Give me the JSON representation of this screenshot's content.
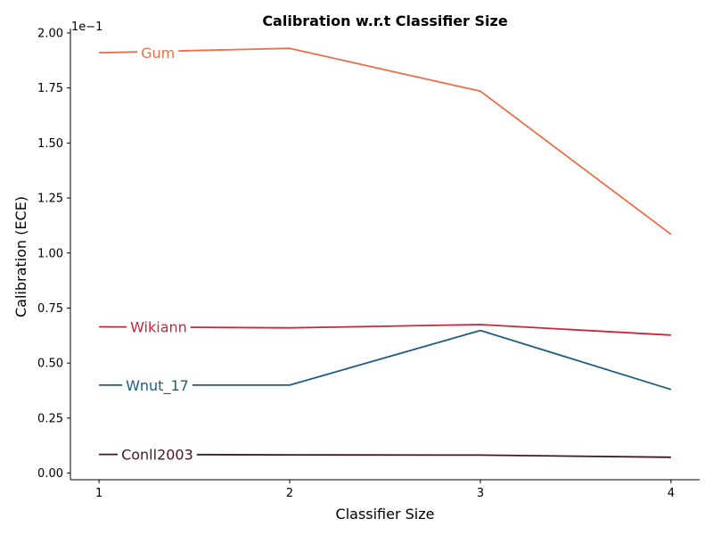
{
  "chart_data": {
    "type": "line",
    "title": "Calibration w.r.t Classifier Size",
    "xlabel": "Classifier Size",
    "ylabel": "Calibration (ECE)",
    "y_multiplier_label": "1e−1",
    "x": [
      1,
      2,
      3,
      4
    ],
    "x_tick_labels": [
      "1",
      "2",
      "3",
      "4"
    ],
    "y_ticks": [
      0.0,
      0.25,
      0.5,
      0.75,
      1.0,
      1.25,
      1.5,
      1.75,
      2.0
    ],
    "y_tick_labels": [
      "0.00",
      "0.25",
      "0.50",
      "0.75",
      "1.00",
      "1.25",
      "1.50",
      "1.75",
      "2.00"
    ],
    "ylim": [
      -0.03,
      2.02
    ],
    "xlim": [
      0.85,
      4.15
    ],
    "grid": false,
    "legend": "inline",
    "series": [
      {
        "name": "Gum",
        "values": [
          1.91,
          1.93,
          1.735,
          1.085
        ],
        "color": "#e8704a"
      },
      {
        "name": "Wikiann",
        "values": [
          0.665,
          0.66,
          0.675,
          0.627
        ],
        "color": "#c8283c"
      },
      {
        "name": "Wnut_17",
        "values": [
          0.4,
          0.4,
          0.648,
          0.38
        ],
        "color": "#215c80"
      },
      {
        "name": "Conll2003",
        "values": [
          0.085,
          0.083,
          0.082,
          0.072
        ],
        "color": "#4a1622"
      }
    ]
  }
}
